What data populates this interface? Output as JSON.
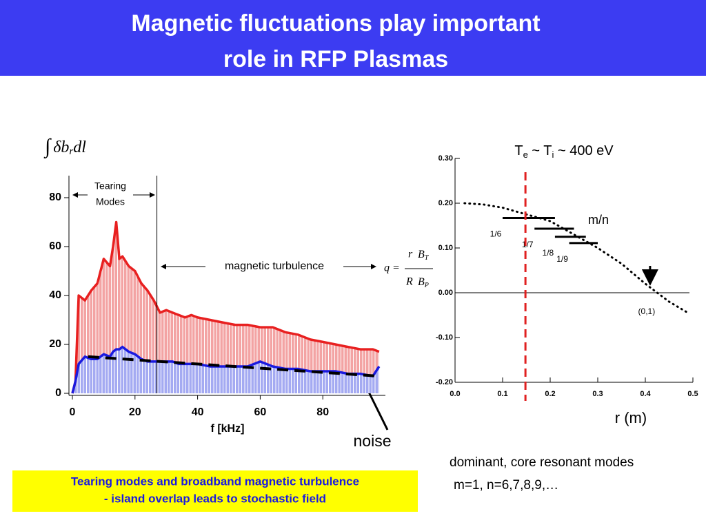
{
  "title": [
    "Magnetic fluctuations play important",
    "role in RFP Plasmas"
  ],
  "caption": [
    "Tearing modes and broadband magnetic turbulence",
    "- island overlap leads to stochastic field"
  ],
  "notes": [
    "dominant, core resonant modes",
    "m=1, n=6,7,8,9,…"
  ],
  "chart_data": [
    {
      "type": "area",
      "xlabel": "f [kHz]",
      "xlim": [
        0,
        100
      ],
      "ylim": [
        0,
        90
      ],
      "xticks": [
        0,
        20,
        40,
        60,
        80
      ],
      "yticks": [
        0,
        20,
        40,
        60,
        80
      ],
      "x": [
        0,
        1,
        2,
        4,
        6,
        8,
        10,
        12,
        13,
        14,
        15,
        16,
        18,
        20,
        22,
        24,
        26,
        28,
        30,
        32,
        34,
        36,
        38,
        40,
        44,
        48,
        52,
        56,
        60,
        64,
        68,
        72,
        76,
        80,
        84,
        88,
        92,
        96,
        98
      ],
      "series": [
        {
          "color": "#e82020",
          "fill": "#f3a3a3",
          "values": [
            0,
            5,
            40,
            38,
            42,
            45,
            55,
            52,
            60,
            70,
            55,
            56,
            52,
            50,
            45,
            42,
            38,
            33,
            34,
            33,
            32,
            31,
            32,
            31,
            30,
            29,
            28,
            28,
            27,
            27,
            25,
            24,
            22,
            21,
            20,
            19,
            18,
            18,
            17
          ]
        },
        {
          "color": "#1a1ae0",
          "fill": "#a4aaf2",
          "values": [
            0,
            5,
            12,
            15,
            14,
            14,
            16,
            15,
            17,
            18,
            18,
            19,
            17,
            16,
            14,
            13,
            13,
            13,
            13,
            13,
            12,
            12,
            12,
            12,
            11,
            11,
            11,
            11,
            13,
            11,
            10,
            10,
            9,
            9,
            9,
            8,
            8,
            7,
            11
          ]
        }
      ],
      "noise": {
        "name": "noise",
        "color": "#000000",
        "x": [
          5,
          98
        ],
        "values": [
          15,
          7
        ]
      },
      "mode_boundary_x": 27,
      "tearing_label": [
        "Tearing",
        "Modes"
      ],
      "turbulence_label": "magnetic turbulence",
      "integral": [
        "∫",
        "δb",
        "r",
        "dl"
      ],
      "q_formula": [
        "q =",
        "r",
        "R",
        "B",
        "T",
        "B",
        "P"
      ]
    },
    {
      "type": "line",
      "xlabel": "r (m)",
      "subtitle": [
        "T",
        "e",
        " ~ T",
        "i",
        " ~ 400 eV"
      ],
      "xlim": [
        0,
        0.5
      ],
      "ylim": [
        -0.2,
        0.3
      ],
      "xticks": [
        {
          "value": 0,
          "label": "0.0"
        },
        0.1,
        0.2,
        0.3,
        0.4,
        0.5
      ],
      "yticks": [
        {
          "value": 0.3,
          "label": "0.30"
        },
        {
          "value": 0.2,
          "label": "0.20"
        },
        {
          "value": 0.1,
          "label": "0.10"
        },
        {
          "value": 0,
          "label": "0.00"
        },
        {
          "value": -0.1,
          "label": "-0.10"
        },
        {
          "value": -0.2,
          "label": "-0.20"
        }
      ],
      "series": [
        {
          "color": "#000000",
          "x": [
            0.02,
            0.06,
            0.1,
            0.15,
            0.2,
            0.25,
            0.3,
            0.35,
            0.4,
            0.45,
            0.49
          ],
          "values": [
            0.2,
            0.197,
            0.19,
            0.175,
            0.16,
            0.13,
            0.1,
            0.065,
            0.02,
            -0.02,
            -0.045
          ]
        }
      ],
      "resonances": {
        "labels": [
          "1/6",
          "1/7",
          "1/8",
          "1/9"
        ],
        "values": [
          0.167,
          0.143,
          0.125,
          0.111
        ],
        "x_start": [
          0.1,
          0.167,
          0.21,
          0.24
        ],
        "x_end": [
          0.21,
          0.25,
          0.275,
          0.3
        ]
      },
      "resonance_label": "m/n",
      "resonance_x": 0.148,
      "resonance_color": "#e02020",
      "zero_label": "(0,1)",
      "zero_x": 0.41
    }
  ]
}
